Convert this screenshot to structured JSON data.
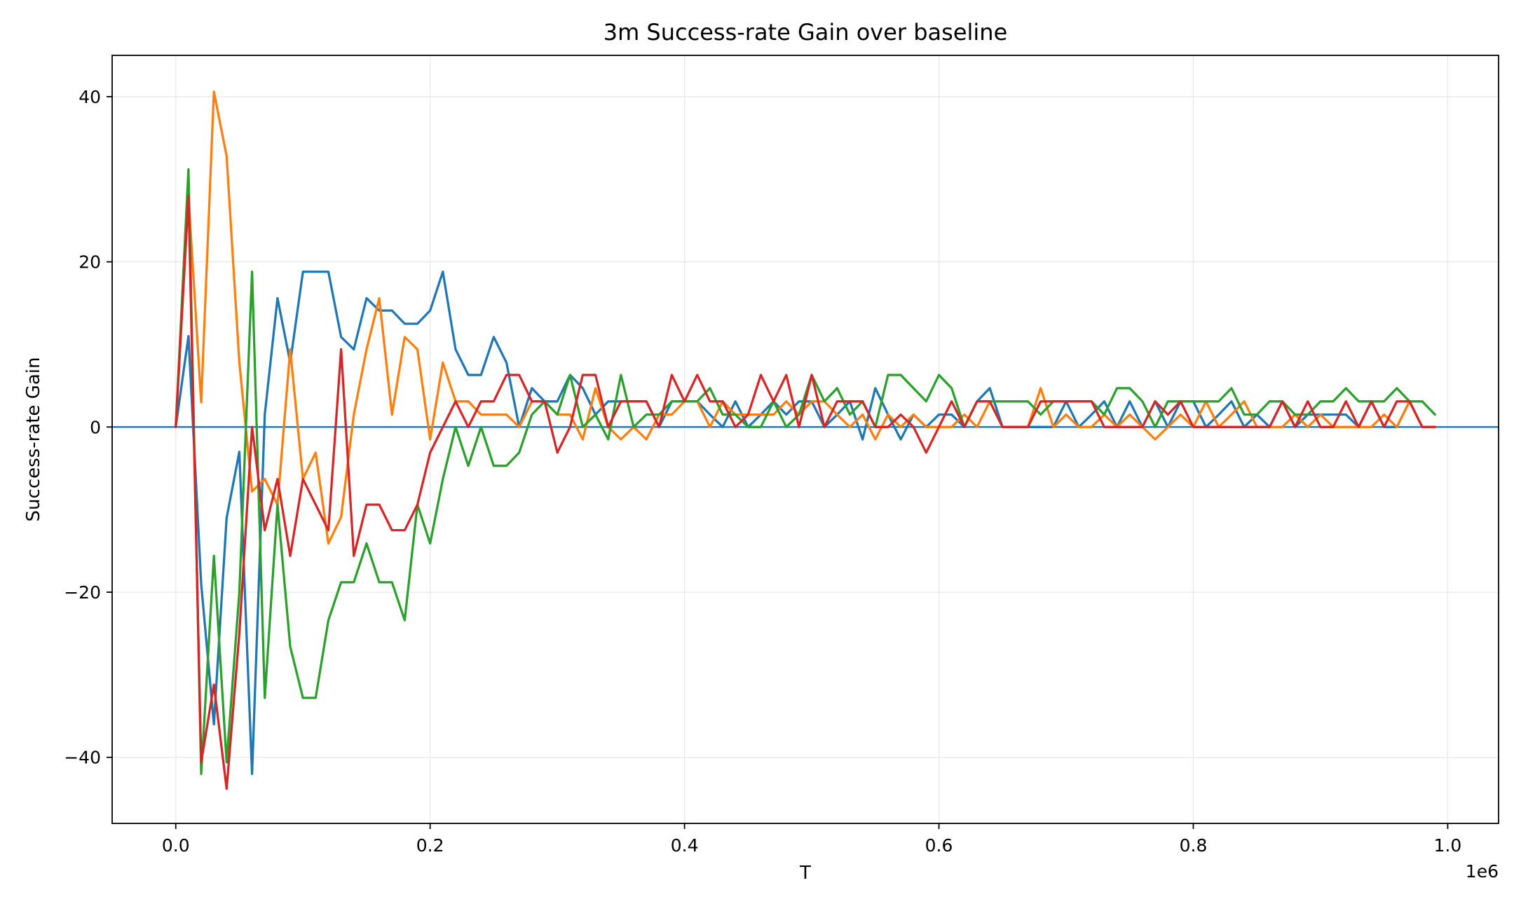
{
  "chart_data": {
    "type": "line",
    "title": "3m Success-rate Gain over baseline",
    "xlabel": "T",
    "ylabel": "Success-rate Gain",
    "x_offset_label": "1e6",
    "xlim": [
      -0.05,
      1.04
    ],
    "ylim": [
      -48,
      45
    ],
    "grid": true,
    "x_ticks": [
      {
        "value": 0.0,
        "label": "0.0"
      },
      {
        "value": 0.2,
        "label": "0.2"
      },
      {
        "value": 0.4,
        "label": "0.4"
      },
      {
        "value": 0.6,
        "label": "0.6"
      },
      {
        "value": 0.8,
        "label": "0.8"
      },
      {
        "value": 1.0,
        "label": "1.0"
      }
    ],
    "y_ticks": [
      {
        "value": 40,
        "label": "40"
      },
      {
        "value": 20,
        "label": "20"
      },
      {
        "value": 0,
        "label": "0"
      },
      {
        "value": -20,
        "label": "−20"
      },
      {
        "value": -40,
        "label": "−40"
      }
    ],
    "reference_line": {
      "y": 0,
      "color": "#1f77b4"
    },
    "x": [
      0.0,
      0.01,
      0.02,
      0.03,
      0.04,
      0.05,
      0.06,
      0.07,
      0.08,
      0.09,
      0.1,
      0.11,
      0.12,
      0.13,
      0.14,
      0.15,
      0.16,
      0.17,
      0.18,
      0.19,
      0.2,
      0.21,
      0.22,
      0.23,
      0.24,
      0.25,
      0.26,
      0.27,
      0.28,
      0.29,
      0.3,
      0.31,
      0.32,
      0.33,
      0.34,
      0.35,
      0.36,
      0.37,
      0.38,
      0.39,
      0.4,
      0.41,
      0.42,
      0.43,
      0.44,
      0.45,
      0.46,
      0.47,
      0.48,
      0.49,
      0.5,
      0.51,
      0.52,
      0.53,
      0.54,
      0.55,
      0.56,
      0.57,
      0.58,
      0.59,
      0.6,
      0.61,
      0.62,
      0.63,
      0.64,
      0.65,
      0.66,
      0.67,
      0.68,
      0.69,
      0.7,
      0.71,
      0.72,
      0.73,
      0.74,
      0.75,
      0.76,
      0.77,
      0.78,
      0.79,
      0.8,
      0.81,
      0.82,
      0.83,
      0.84,
      0.85,
      0.86,
      0.87,
      0.88,
      0.89,
      0.9,
      0.91,
      0.92,
      0.93,
      0.94,
      0.95,
      0.96,
      0.97,
      0.98,
      0.99
    ],
    "series": [
      {
        "color": "#1f77b4",
        "values": [
          0,
          11,
          -19,
          -36,
          -11,
          -3,
          -42,
          1.5,
          15.6,
          7.8,
          18.8,
          18.8,
          18.8,
          10.9,
          9.4,
          15.6,
          14.1,
          14.1,
          12.5,
          12.5,
          14.1,
          18.8,
          9.4,
          6.3,
          6.3,
          10.9,
          7.8,
          0,
          4.7,
          3.1,
          3.1,
          6.3,
          4.7,
          1.5,
          3.1,
          3.1,
          3.1,
          3.1,
          0,
          3.1,
          3.1,
          3.1,
          1.5,
          0,
          3.1,
          0,
          1.5,
          3.1,
          1.5,
          3.1,
          3.1,
          0,
          1.5,
          3.1,
          -1.5,
          4.7,
          1.5,
          -1.5,
          1.5,
          0,
          1.5,
          1.5,
          0,
          3.1,
          4.7,
          0,
          0,
          0,
          0,
          0,
          3.1,
          0,
          1.5,
          3.1,
          0,
          3.1,
          0,
          3.1,
          0,
          3.1,
          3.1,
          0,
          1.5,
          3.1,
          0,
          1.5,
          0,
          3.1,
          0,
          1.5,
          1.5,
          1.5,
          1.5,
          0,
          3.1,
          0,
          0,
          3.1,
          0,
          0
        ]
      },
      {
        "color": "#ff7f0e",
        "values": [
          0,
          28,
          3,
          40.6,
          32.8,
          7.8,
          -7.8,
          -6.3,
          -9.4,
          9.4,
          -6.3,
          -3.1,
          -14.1,
          -10.9,
          1.5,
          9.4,
          15.6,
          1.5,
          10.9,
          9.4,
          -1.5,
          7.8,
          3.1,
          3.1,
          1.5,
          1.5,
          1.5,
          0,
          3.1,
          3.1,
          1.5,
          1.5,
          -1.5,
          4.7,
          0,
          -1.5,
          0,
          -1.5,
          1.5,
          1.5,
          3.1,
          3.1,
          0,
          3.1,
          1.5,
          1.5,
          1.5,
          1.5,
          3.1,
          1.5,
          3.1,
          3.1,
          1.5,
          0,
          1.5,
          -1.5,
          1.5,
          0,
          1.5,
          0,
          0,
          0,
          1.5,
          0,
          3.1,
          0,
          0,
          0,
          4.7,
          0,
          1.5,
          0,
          0,
          1.5,
          0,
          1.5,
          0,
          -1.5,
          0,
          1.5,
          0,
          3.1,
          0,
          1.5,
          3.1,
          0,
          0,
          0,
          1.5,
          0,
          1.5,
          0,
          0,
          0,
          0,
          1.5,
          0,
          3.1,
          0,
          0
        ]
      },
      {
        "color": "#2ca02c",
        "values": [
          0,
          31.2,
          -42,
          -15.6,
          -40.6,
          -20,
          18.8,
          -32.8,
          -9.4,
          -26.6,
          -32.8,
          -32.8,
          -23.4,
          -18.8,
          -18.8,
          -14.1,
          -18.8,
          -18.8,
          -23.4,
          -9.4,
          -14.1,
          -6.3,
          0,
          -4.7,
          0,
          -4.7,
          -4.7,
          -3.1,
          1.5,
          3.1,
          1.5,
          6.3,
          0,
          1.5,
          -1.5,
          6.3,
          0,
          1.5,
          1.5,
          3.1,
          3.1,
          3.1,
          4.7,
          1.5,
          1.5,
          0,
          0,
          3.1,
          0,
          1.5,
          6.3,
          3.1,
          4.7,
          1.5,
          3.1,
          0,
          6.3,
          6.3,
          4.7,
          3.1,
          6.3,
          4.7,
          0,
          3.1,
          3.1,
          3.1,
          3.1,
          3.1,
          1.5,
          3.1,
          3.1,
          3.1,
          3.1,
          1.5,
          4.7,
          4.7,
          3.1,
          0,
          3.1,
          3.1,
          3.1,
          3.1,
          3.1,
          4.7,
          1.5,
          1.5,
          3.1,
          3.1,
          1.5,
          1.5,
          3.1,
          3.1,
          4.7,
          3.1,
          3.1,
          3.1,
          4.7,
          3.1,
          3.1,
          1.5
        ]
      },
      {
        "color": "#d62728",
        "values": [
          0,
          28,
          -40.6,
          -31.2,
          -43.8,
          -25,
          0,
          -12.5,
          -6.3,
          -15.6,
          -6.3,
          -9.4,
          -12.5,
          9.4,
          -15.6,
          -9.4,
          -9.4,
          -12.5,
          -12.5,
          -9.4,
          -3.1,
          0,
          3.1,
          0,
          3.1,
          3.1,
          6.3,
          6.3,
          3.1,
          3.1,
          -3.1,
          0,
          6.3,
          6.3,
          0,
          3.1,
          3.1,
          3.1,
          0,
          6.3,
          3.1,
          6.3,
          3.1,
          3.1,
          0,
          1.5,
          6.3,
          3.1,
          6.3,
          0,
          6.3,
          0,
          3.1,
          3.1,
          3.1,
          0,
          0,
          1.5,
          0,
          -3.1,
          0,
          3.1,
          0,
          3.1,
          3.1,
          0,
          0,
          0,
          3.1,
          3.1,
          3.1,
          3.1,
          3.1,
          0,
          0,
          0,
          0,
          3.1,
          1.5,
          3.1,
          0,
          0,
          0,
          0,
          0,
          0,
          0,
          3.1,
          0,
          3.1,
          0,
          0,
          3.1,
          0,
          3.1,
          0,
          3.1,
          3.1,
          0,
          0
        ]
      }
    ]
  }
}
